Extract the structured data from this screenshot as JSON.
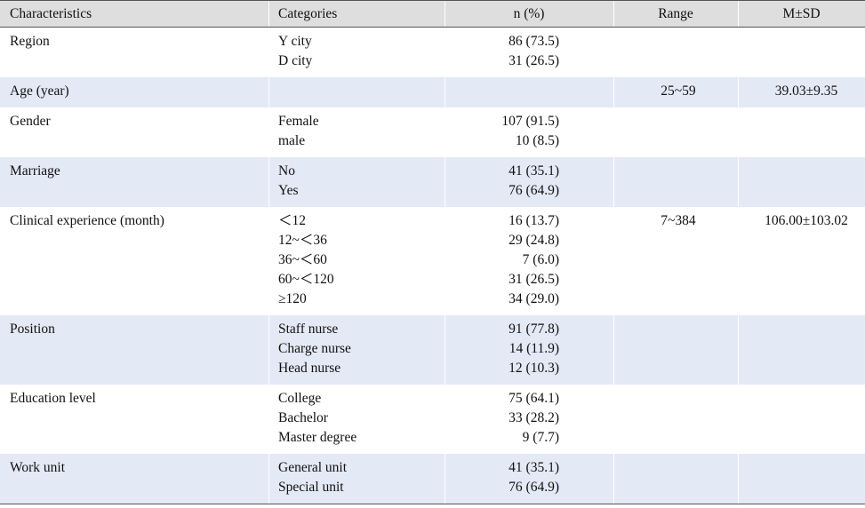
{
  "table": {
    "header": [
      "Characteristics",
      "Categories",
      "n (%)",
      "Range",
      "M±SD"
    ],
    "rows": [
      {
        "characteristic": "Region",
        "categories": [
          "Y city",
          "D city"
        ],
        "n": [
          "86 (73.5)",
          "31 (26.5)"
        ]
      },
      {
        "characteristic": "Age (year)",
        "categories": [],
        "n": [],
        "range": "25~59",
        "msd": "39.03±9.35"
      },
      {
        "characteristic": "Gender",
        "categories": [
          "Female",
          "male"
        ],
        "n": [
          "107 (91.5)",
          "10 (8.5)"
        ]
      },
      {
        "characteristic": "Marriage",
        "categories": [
          "No",
          "Yes"
        ],
        "n": [
          "41 (35.1)",
          "76 (64.9)"
        ]
      },
      {
        "characteristic": "Clinical experience (month)",
        "categories": [
          "＜12",
          "12~＜36",
          "36~＜60",
          "60~＜120",
          "≥120"
        ],
        "n": [
          "16 (13.7)",
          "29 (24.8)",
          "7 (6.0)",
          "31 (26.5)",
          "34 (29.0)"
        ],
        "range": "7~384",
        "msd": "106.00±103.02"
      },
      {
        "characteristic": "Position",
        "categories": [
          "Staff nurse",
          "Charge nurse",
          "Head nurse"
        ],
        "n": [
          "91 (77.8)",
          "14 (11.9)",
          "12 (10.3)"
        ]
      },
      {
        "characteristic": "Education level",
        "categories": [
          "College",
          "Bachelor",
          "Master degree"
        ],
        "n": [
          "75 (64.1)",
          "33 (28.2)",
          "9 (7.7)"
        ]
      },
      {
        "characteristic": "Work unit",
        "categories": [
          "General unit",
          "Special unit"
        ],
        "n": [
          "41 (35.1)",
          "76 (64.9)"
        ]
      }
    ]
  }
}
